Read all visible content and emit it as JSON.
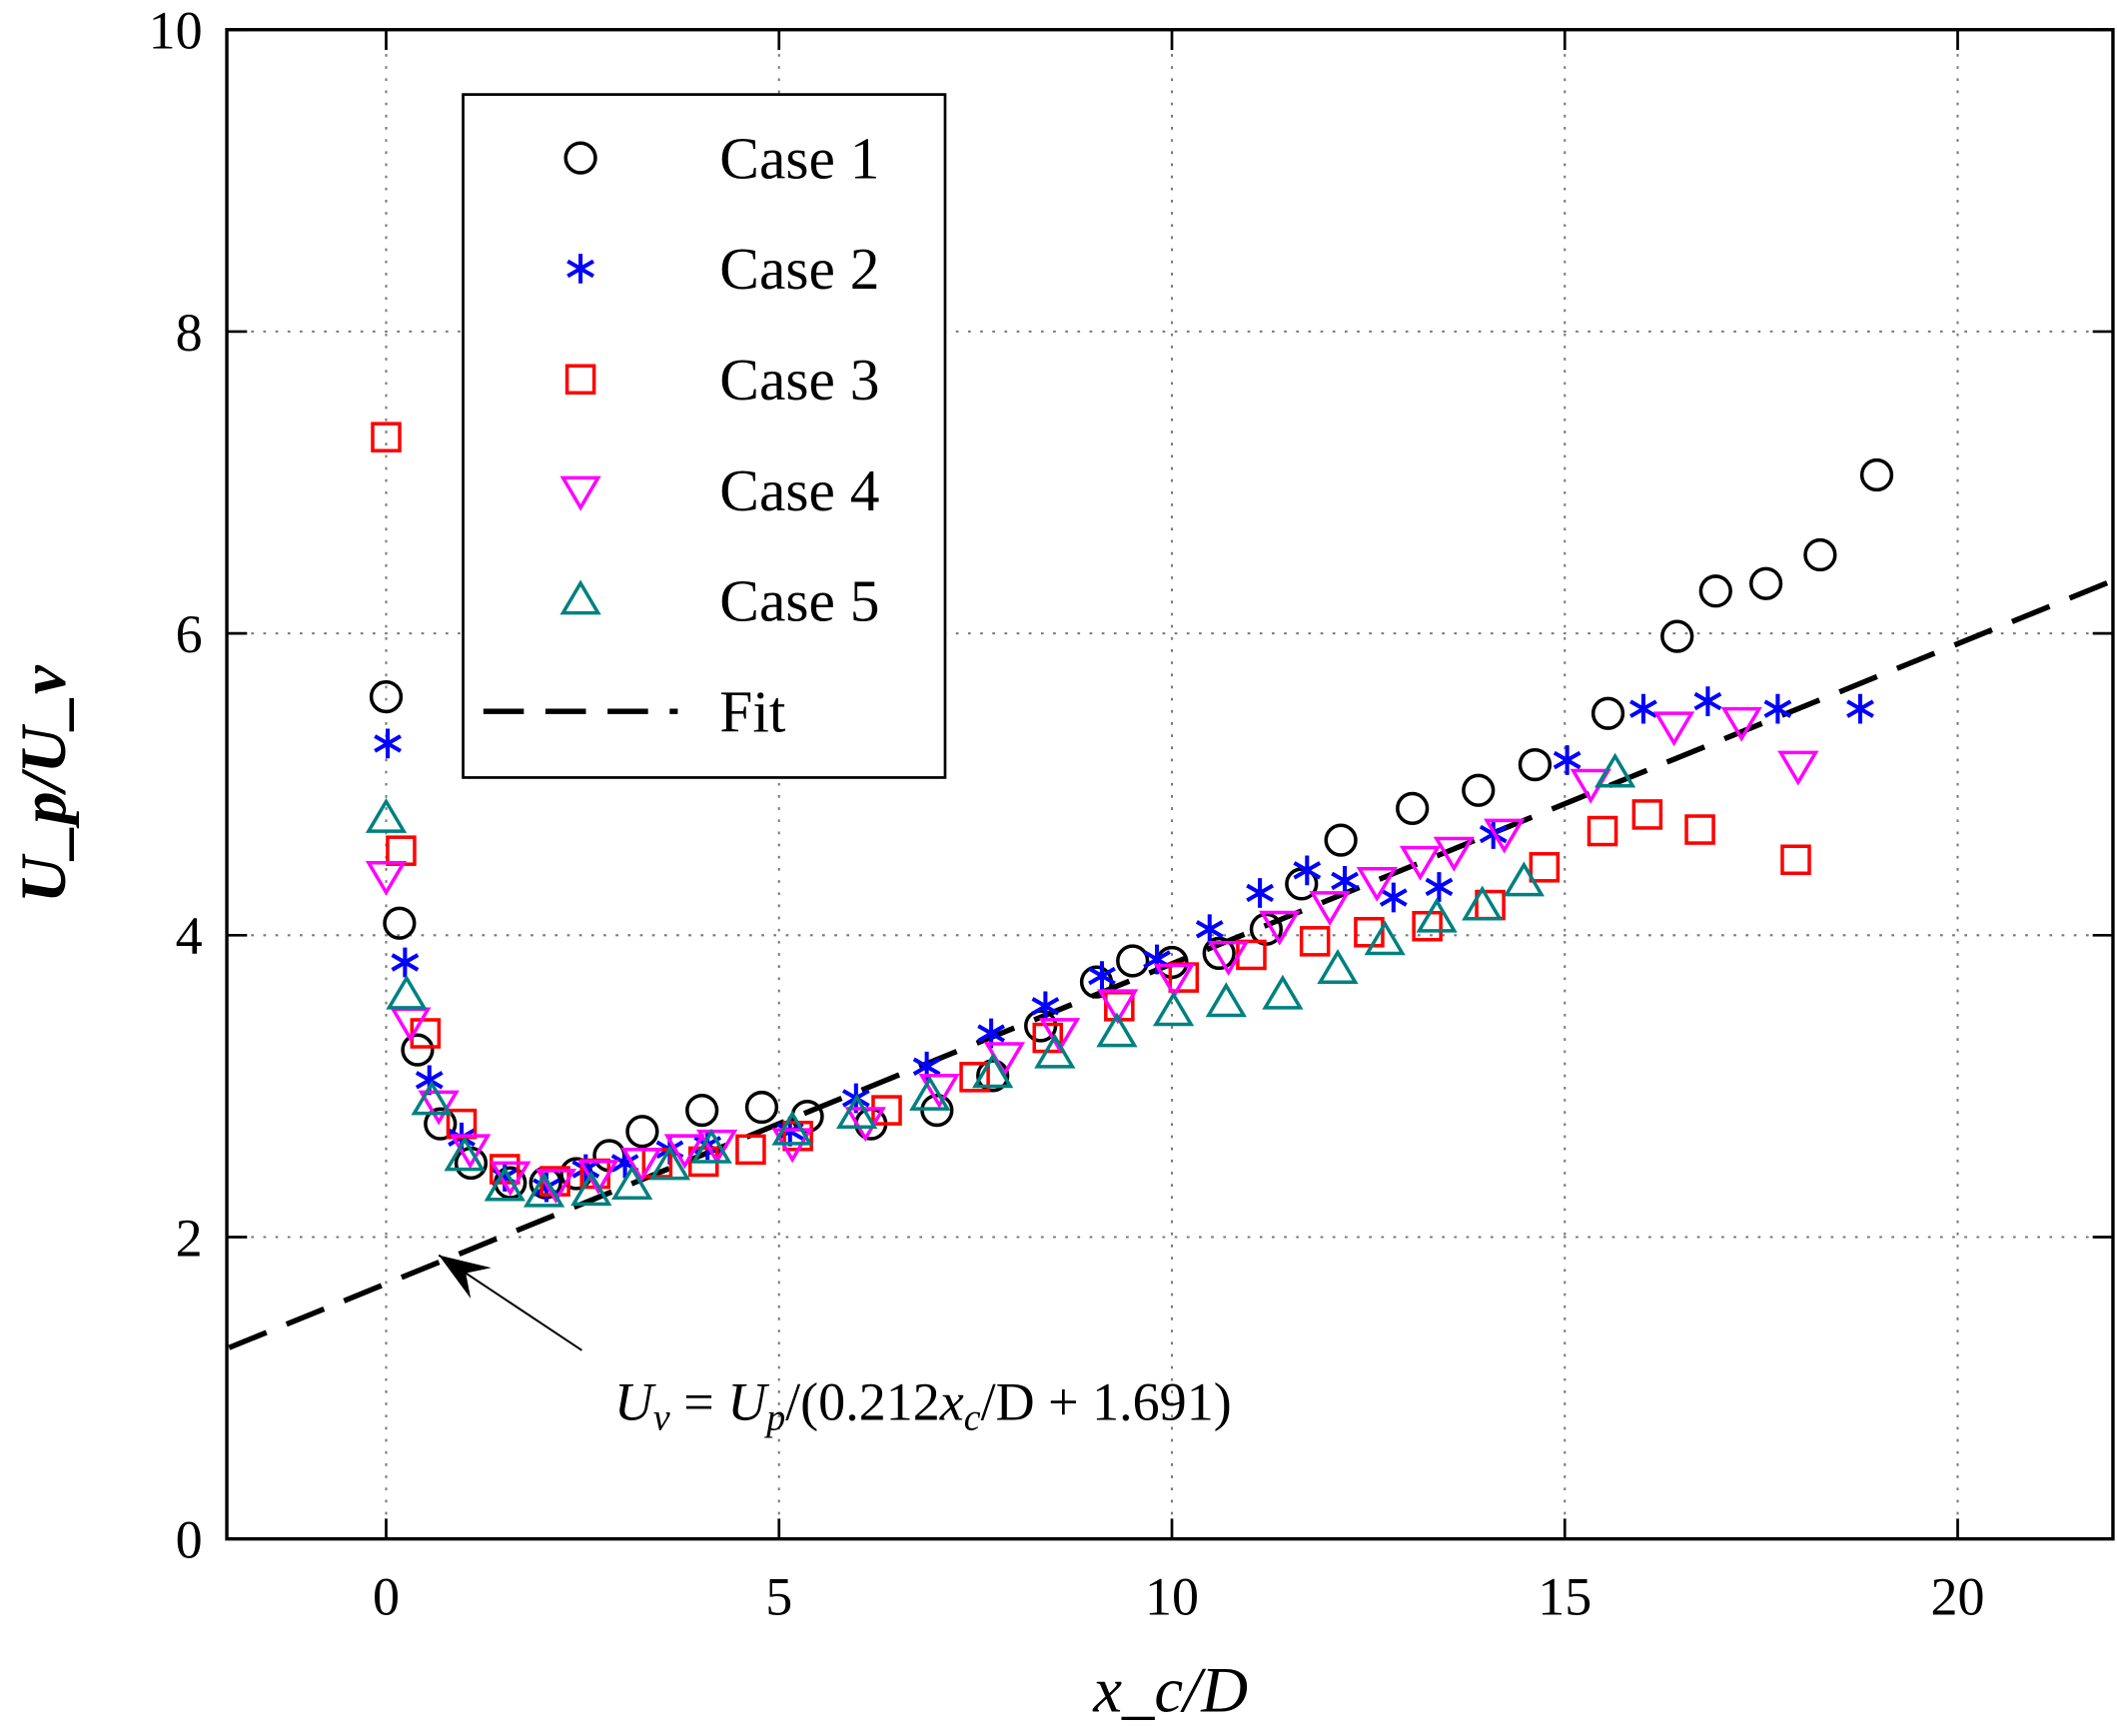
{
  "chart_data": {
    "type": "scatter",
    "xlabel": "x_c/D",
    "ylabel": "U_p/U_v",
    "xlim": [
      -2,
      22
    ],
    "ylim": [
      0,
      10
    ],
    "xticks": [
      0,
      5,
      10,
      15,
      20
    ],
    "yticks": [
      0,
      2,
      4,
      6,
      8,
      10
    ],
    "grid": true,
    "legend_position": "top-left",
    "series": [
      {
        "name": "Case 1",
        "marker": "circle",
        "color": "#000000",
        "x": [
          0,
          0.17,
          0.4,
          0.69,
          1.08,
          1.58,
          2.03,
          2.42,
          2.84,
          3.26,
          4.02,
          4.78,
          5.36,
          6.17,
          7.01,
          7.72,
          8.33,
          9.04,
          9.5,
          10.0,
          10.6,
          11.2,
          11.65,
          12.15,
          13.06,
          13.9,
          14.62,
          15.55,
          16.43,
          16.92,
          17.56,
          18.25,
          18.97
        ],
        "y": [
          5.58,
          4.08,
          3.24,
          2.75,
          2.49,
          2.36,
          2.36,
          2.42,
          2.54,
          2.7,
          2.84,
          2.86,
          2.8,
          2.75,
          2.84,
          3.07,
          3.4,
          3.69,
          3.83,
          3.82,
          3.88,
          4.04,
          4.34,
          4.63,
          4.84,
          4.96,
          5.13,
          5.47,
          5.98,
          6.28,
          6.33,
          6.52,
          7.05
        ]
      },
      {
        "name": "Case 2",
        "marker": "star",
        "color": "#0000ff",
        "x": [
          0.02,
          0.24,
          0.55,
          0.96,
          1.51,
          2.04,
          2.54,
          3.04,
          3.61,
          4.09,
          5.14,
          5.98,
          6.88,
          7.7,
          8.39,
          9.11,
          9.81,
          10.48,
          11.12,
          11.72,
          12.2,
          12.82,
          13.4,
          14.09,
          15.03,
          16.0,
          16.82,
          17.71,
          18.76
        ],
        "y": [
          5.27,
          3.82,
          3.04,
          2.66,
          2.4,
          2.33,
          2.45,
          2.49,
          2.58,
          2.61,
          2.7,
          2.92,
          3.13,
          3.35,
          3.53,
          3.73,
          3.84,
          4.04,
          4.28,
          4.43,
          4.36,
          4.25,
          4.32,
          4.67,
          5.16,
          5.5,
          5.55,
          5.5,
          5.5
        ]
      },
      {
        "name": "Case 3",
        "marker": "square",
        "color": "#ff0000",
        "x": [
          0,
          0.19,
          0.5,
          0.96,
          1.51,
          2.15,
          2.66,
          3.45,
          4.04,
          4.64,
          5.24,
          6.37,
          7.49,
          8.42,
          9.33,
          10.15,
          11.01,
          11.82,
          12.51,
          13.25,
          14.05,
          14.74,
          15.48,
          16.05,
          16.72,
          17.94
        ],
        "y": [
          7.3,
          4.56,
          3.35,
          2.75,
          2.45,
          2.37,
          2.42,
          2.49,
          2.5,
          2.58,
          2.67,
          2.84,
          3.06,
          3.32,
          3.53,
          3.72,
          3.87,
          3.96,
          4.02,
          4.06,
          4.2,
          4.45,
          4.69,
          4.8,
          4.7,
          4.5
        ]
      },
      {
        "name": "Case 4",
        "marker": "triangle-down",
        "color": "#ff00ff",
        "x": [
          0,
          0.31,
          0.67,
          1.07,
          1.58,
          2.16,
          2.7,
          3.25,
          3.8,
          4.21,
          5.17,
          6.1,
          7.04,
          7.87,
          8.57,
          9.31,
          10.03,
          10.72,
          11.37,
          12.01,
          12.61,
          13.16,
          13.59,
          14.23,
          15.33,
          16.39,
          17.25,
          17.97
        ],
        "y": [
          4.4,
          3.43,
          2.88,
          2.59,
          2.41,
          2.36,
          2.42,
          2.5,
          2.59,
          2.62,
          2.63,
          2.77,
          2.99,
          3.2,
          3.36,
          3.55,
          3.72,
          3.87,
          4.07,
          4.2,
          4.36,
          4.5,
          4.56,
          4.68,
          5.01,
          5.39,
          5.42,
          5.13
        ]
      },
      {
        "name": "Case 5",
        "marker": "triangle-up",
        "color": "#008080",
        "x": [
          0,
          0.26,
          0.58,
          1.0,
          1.51,
          2.01,
          2.61,
          3.13,
          3.61,
          4.14,
          5.17,
          5.99,
          6.92,
          7.72,
          8.51,
          9.3,
          10.02,
          10.69,
          11.41,
          12.11,
          12.71,
          13.37,
          13.95,
          14.48,
          15.64
        ],
        "y": [
          4.77,
          3.6,
          2.9,
          2.53,
          2.33,
          2.29,
          2.3,
          2.34,
          2.47,
          2.58,
          2.7,
          2.81,
          2.93,
          3.08,
          3.21,
          3.35,
          3.49,
          3.55,
          3.6,
          3.77,
          3.96,
          4.11,
          4.19,
          4.35,
          5.07
        ]
      }
    ],
    "fit": {
      "name": "Fit",
      "slope": 0.212,
      "intercept": 1.691,
      "style": "dashed",
      "color": "#000000"
    },
    "annotation": {
      "text": "U_v = U_p/(0.212x_c/D + 1.691)",
      "arrow_from": [
        2.49,
        1.25
      ],
      "arrow_to": [
        0.67,
        1.88
      ]
    }
  }
}
